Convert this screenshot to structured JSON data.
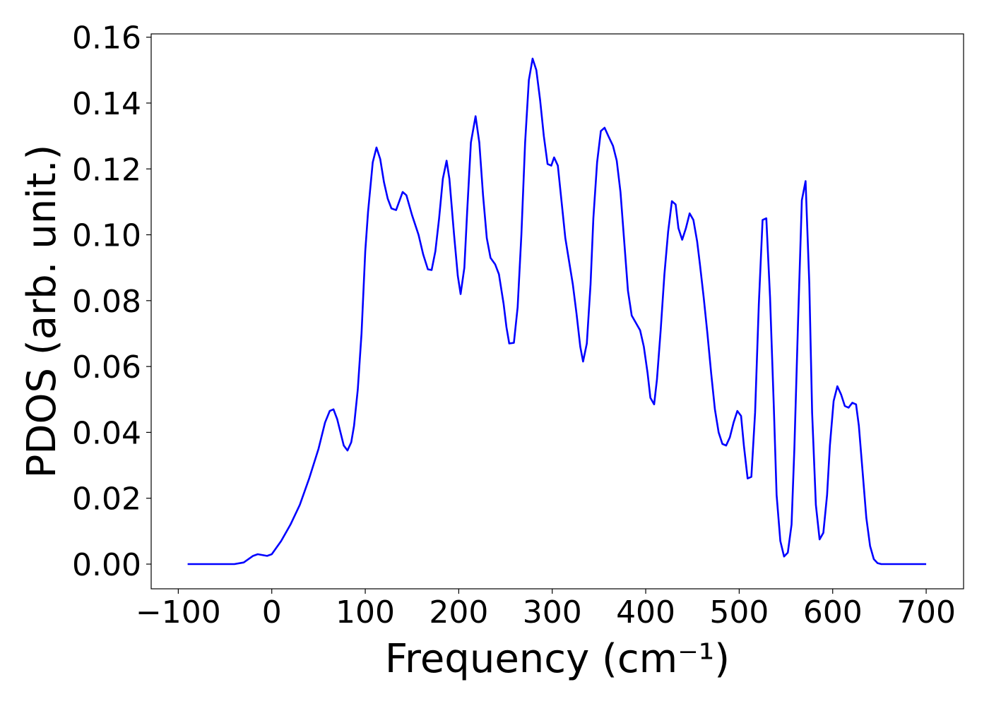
{
  "chart_data": {
    "type": "line",
    "x_label": "Frequency (cm⁻¹)",
    "y_label": "PDOS (arb. unit.)",
    "x": [
      -90,
      -40,
      -30,
      -20,
      -15,
      -5,
      0,
      10,
      20,
      30,
      40,
      50,
      57,
      62,
      66,
      70,
      77,
      81,
      85,
      88,
      92,
      96,
      100,
      103,
      108,
      112,
      116,
      120,
      124,
      128,
      133,
      140,
      144,
      150,
      157,
      162,
      167,
      171,
      175,
      179,
      183,
      187,
      190,
      195,
      199,
      202,
      206,
      209,
      213,
      218,
      222,
      226,
      230,
      234,
      239,
      243,
      248,
      251,
      254,
      259,
      263,
      267,
      271,
      275,
      279,
      283,
      287,
      291,
      295,
      299,
      302,
      306,
      310,
      314,
      318,
      322,
      326,
      330,
      333,
      337,
      341,
      344,
      348,
      352,
      356,
      360,
      365,
      369,
      373,
      377,
      381,
      385,
      390,
      394,
      398,
      402,
      405,
      409,
      412,
      416,
      420,
      424,
      428,
      432,
      435,
      439,
      443,
      447,
      451,
      455,
      458,
      462,
      466,
      470,
      474,
      478,
      482,
      486,
      490,
      494,
      498,
      502,
      505,
      509,
      513,
      517,
      521,
      525,
      529,
      533,
      537,
      540,
      544,
      548,
      552,
      556,
      559,
      563,
      567,
      571,
      575,
      578,
      582,
      586,
      590,
      594,
      597,
      601,
      605,
      609,
      613,
      617,
      621,
      625,
      628,
      632,
      636,
      640,
      644,
      648,
      652,
      700
    ],
    "series": [
      {
        "name": "PDOS",
        "color": "#0000ff",
        "values": [
          0,
          0,
          0.0005,
          0.0025,
          0.003,
          0.0025,
          0.003,
          0.007,
          0.012,
          0.018,
          0.026,
          0.035,
          0.043,
          0.0465,
          0.047,
          0.044,
          0.036,
          0.0345,
          0.037,
          0.042,
          0.053,
          0.07,
          0.095,
          0.107,
          0.122,
          0.1265,
          0.123,
          0.116,
          0.111,
          0.108,
          0.1075,
          0.113,
          0.112,
          0.106,
          0.1,
          0.094,
          0.0895,
          0.0893,
          0.095,
          0.105,
          0.117,
          0.1225,
          0.117,
          0.1,
          0.0875,
          0.082,
          0.09,
          0.107,
          0.128,
          0.136,
          0.128,
          0.112,
          0.099,
          0.093,
          0.091,
          0.088,
          0.079,
          0.072,
          0.067,
          0.0672,
          0.078,
          0.1,
          0.128,
          0.147,
          0.1535,
          0.15,
          0.141,
          0.13,
          0.1215,
          0.121,
          0.1235,
          0.121,
          0.11,
          0.099,
          0.092,
          0.085,
          0.076,
          0.066,
          0.0615,
          0.067,
          0.085,
          0.105,
          0.122,
          0.1315,
          0.1325,
          0.13,
          0.127,
          0.1225,
          0.113,
          0.098,
          0.083,
          0.0755,
          0.073,
          0.071,
          0.066,
          0.058,
          0.0505,
          0.0485,
          0.056,
          0.071,
          0.088,
          0.101,
          0.1102,
          0.1092,
          0.102,
          0.0985,
          0.102,
          0.1065,
          0.1045,
          0.098,
          0.091,
          0.081,
          0.07,
          0.058,
          0.047,
          0.04,
          0.0365,
          0.036,
          0.0385,
          0.043,
          0.0465,
          0.045,
          0.036,
          0.026,
          0.0265,
          0.046,
          0.079,
          0.1045,
          0.105,
          0.081,
          0.048,
          0.021,
          0.007,
          0.0023,
          0.0035,
          0.012,
          0.035,
          0.074,
          0.1105,
          0.1163,
          0.085,
          0.046,
          0.018,
          0.0075,
          0.0095,
          0.021,
          0.036,
          0.0495,
          0.054,
          0.0515,
          0.048,
          0.0475,
          0.049,
          0.0485,
          0.042,
          0.028,
          0.014,
          0.0055,
          0.0015,
          0.0003,
          0,
          0
        ]
      }
    ],
    "xlim": [
      -129,
      740
    ],
    "xticks": [
      {
        "value": -100,
        "label": "−100"
      },
      0,
      100,
      200,
      300,
      400,
      500,
      600,
      700
    ],
    "ylim": [
      -0.0075,
      0.161
    ],
    "yticks": [
      {
        "value": 0,
        "label": "0.00"
      },
      {
        "value": 0.02,
        "label": "0.02"
      },
      {
        "value": 0.04,
        "label": "0.04"
      },
      {
        "value": 0.06,
        "label": "0.06"
      },
      {
        "value": 0.08,
        "label": "0.08"
      },
      {
        "value": 0.1,
        "label": "0.10"
      },
      {
        "value": 0.12,
        "label": "0.12"
      },
      {
        "value": 0.14,
        "label": "0.14"
      },
      {
        "value": 0.16,
        "label": "0.16"
      }
    ],
    "grid": false
  }
}
